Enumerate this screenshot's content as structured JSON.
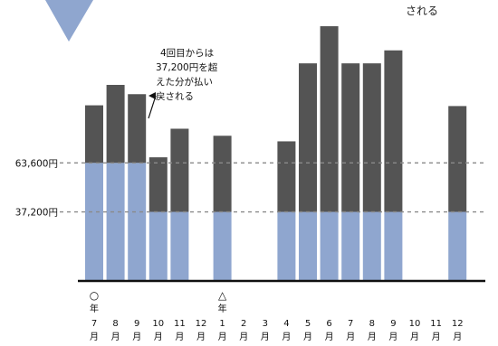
{
  "chart_data": {
    "type": "bar",
    "stacked": true,
    "title": "",
    "xlabel": "",
    "ylabel": "",
    "categories": [
      {
        "month": "7",
        "unit": "月",
        "year_mark": "○",
        "year_unit": "年"
      },
      {
        "month": "8",
        "unit": "月"
      },
      {
        "month": "9",
        "unit": "月"
      },
      {
        "month": "10",
        "unit": "月"
      },
      {
        "month": "11",
        "unit": "月"
      },
      {
        "month": "12",
        "unit": "月"
      },
      {
        "month": "1",
        "unit": "月",
        "year_mark": "△",
        "year_unit": "年"
      },
      {
        "month": "2",
        "unit": "月"
      },
      {
        "month": "3",
        "unit": "月"
      },
      {
        "month": "4",
        "unit": "月"
      },
      {
        "month": "5",
        "unit": "月"
      },
      {
        "month": "6",
        "unit": "月"
      },
      {
        "month": "7",
        "unit": "月"
      },
      {
        "month": "8",
        "unit": "月"
      },
      {
        "month": "9",
        "unit": "月"
      },
      {
        "month": "10",
        "unit": "月"
      },
      {
        "month": "11",
        "unit": "月"
      },
      {
        "month": "12",
        "unit": "月"
      }
    ],
    "series": [
      {
        "values": [
          63600,
          63600,
          63600,
          37200,
          37200,
          null,
          37200,
          null,
          null,
          37200,
          37200,
          37200,
          37200,
          37200,
          37200,
          null,
          null,
          37200
        ],
        "color": "#8fa6cf"
      },
      {
        "values": [
          31000,
          42000,
          37000,
          29400,
          44800,
          null,
          41000,
          null,
          null,
          38000,
          80000,
          100000,
          80000,
          80000,
          87000,
          null,
          null,
          57000
        ],
        "color": "#545454"
      }
    ],
    "reference_lines": [
      {
        "label": "63,600円",
        "value": 63600
      },
      {
        "label": "37,200円",
        "value": 37200
      }
    ],
    "ylim": [
      0,
      145000
    ],
    "grid": false,
    "annotations": {
      "note_lines": [
        "4回目からは",
        "37,200円を超",
        "えた分が払い",
        "戻される"
      ],
      "corner_text": "される"
    },
    "colors": {
      "capped_portion": "#8fa6cf",
      "excess_portion": "#545454",
      "badge": "#8fa6cf",
      "reference_line": "#8a8a8a"
    }
  }
}
